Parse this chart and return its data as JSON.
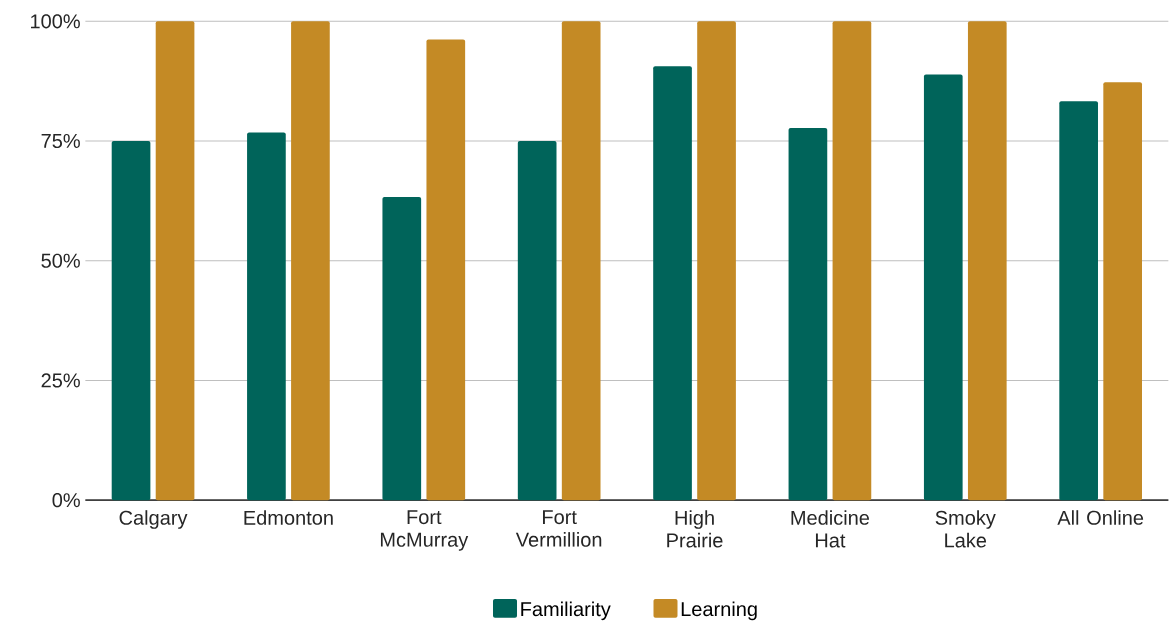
{
  "chart_data": {
    "type": "bar",
    "categories": [
      "Calgary",
      "Edmonton",
      "Fort McMurray",
      "Fort Vermillion",
      "High Prairie",
      "Medicine Hat",
      "Smoky Lake",
      "All Online"
    ],
    "series": [
      {
        "name": "Familiarity",
        "color": "#00645a",
        "values": [
          75,
          76.8,
          63.3,
          75,
          90.6,
          77.7,
          88.9,
          83.3
        ]
      },
      {
        "name": "Learning",
        "color": "#c48a25",
        "values": [
          100,
          100,
          96.2,
          100,
          100,
          100,
          100,
          87.3
        ]
      }
    ],
    "ylim": [
      0,
      100
    ],
    "yticks": [
      {
        "value": 0,
        "label": "0%"
      },
      {
        "value": 25,
        "label": "25%"
      },
      {
        "value": 50,
        "label": "50%"
      },
      {
        "value": 75,
        "label": "75%"
      },
      {
        "value": 100,
        "label": "100%"
      }
    ],
    "grid": "y",
    "legend": "bottom"
  }
}
